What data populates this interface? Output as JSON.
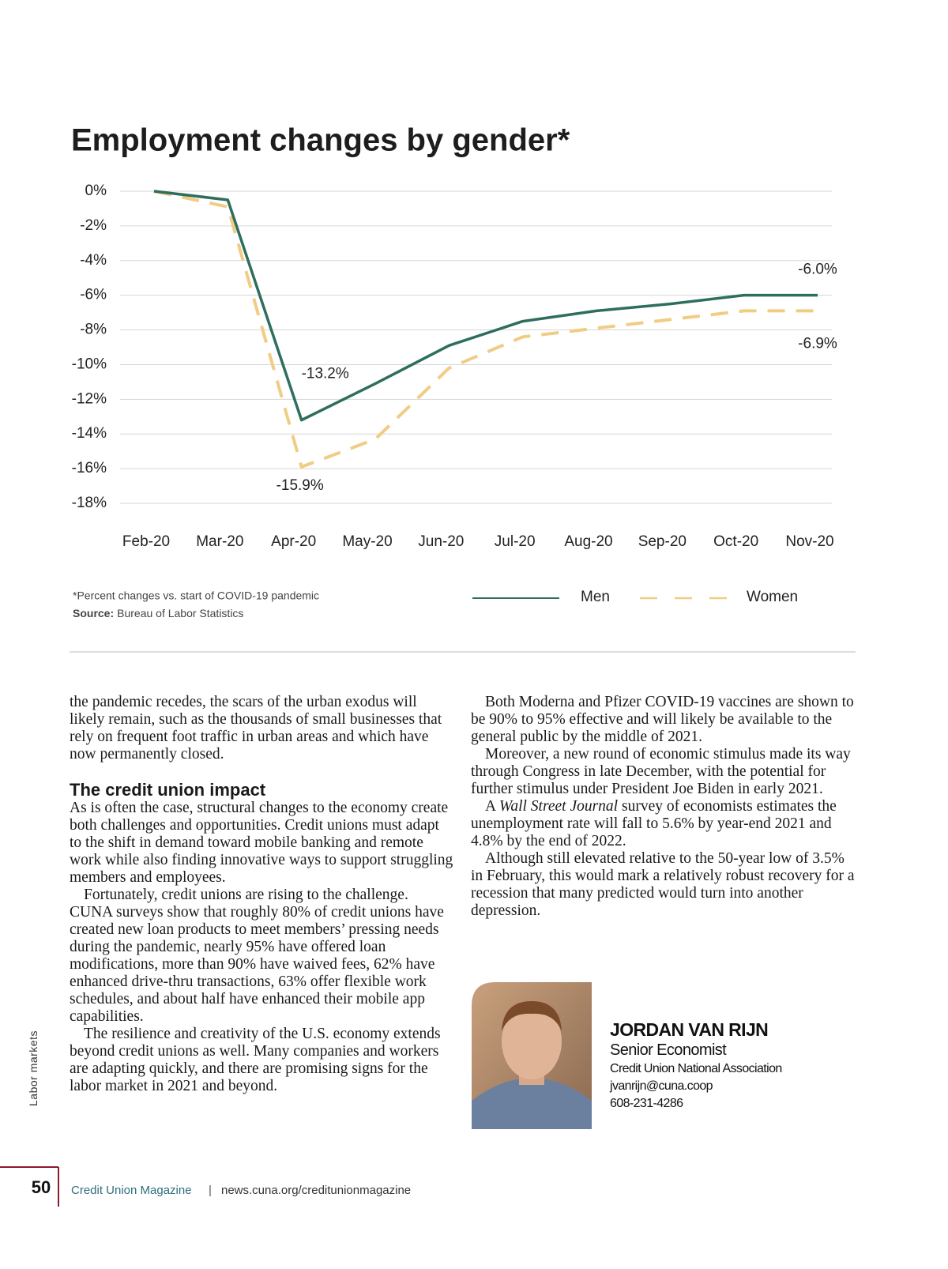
{
  "chart_data": {
    "type": "line",
    "title": "Employment changes by gender*",
    "categories": [
      "Feb-20",
      "Mar-20",
      "Apr-20",
      "May-20",
      "Jun-20",
      "Jul-20",
      "Aug-20",
      "Sep-20",
      "Oct-20",
      "Nov-20"
    ],
    "series": [
      {
        "name": "Men",
        "color": "#2e6e5e",
        "dashed": false,
        "values": [
          0,
          -0.5,
          -13.2,
          -11.1,
          -8.9,
          -7.5,
          -6.9,
          -6.5,
          -6.0,
          -6.0
        ],
        "value_labels": [
          null,
          null,
          "-13.2%",
          null,
          null,
          null,
          null,
          null,
          null,
          "-6.0%"
        ]
      },
      {
        "name": "Women",
        "color": "#f0cc85",
        "dashed": true,
        "values": [
          0,
          -0.9,
          -15.9,
          -14.3,
          -10.2,
          -8.4,
          -7.9,
          -7.4,
          -6.9,
          -6.9
        ],
        "value_labels": [
          null,
          null,
          "-15.9%",
          null,
          null,
          null,
          null,
          null,
          null,
          "-6.9%"
        ]
      }
    ],
    "ylim": [
      -18,
      0
    ],
    "yticks": [
      {
        "value": 0,
        "label": "0%"
      },
      {
        "value": -2,
        "label": "-2%"
      },
      {
        "value": -4,
        "label": "-4%"
      },
      {
        "value": -6,
        "label": "-6%"
      },
      {
        "value": -8,
        "label": "-8%"
      },
      {
        "value": -10,
        "label": "-10%"
      },
      {
        "value": -12,
        "label": "-12%"
      },
      {
        "value": -14,
        "label": "-14%"
      },
      {
        "value": -16,
        "label": "-16%"
      },
      {
        "value": -18,
        "label": "-18%"
      }
    ],
    "grid": true,
    "legend": "bottom",
    "note": "*Percent changes vs. start of COVID-19 pandemic",
    "source_label": "Source:",
    "source": "Bureau of Labor Statistics"
  },
  "article": {
    "left": [
      "the pandemic recedes, the scars of the urban exodus will likely remain, such as the thousands of small businesses that rely on frequent foot traffic in urban areas and which have now permanently closed."
    ],
    "heading": "The credit union impact",
    "left2": [
      "As is often the case, structural changes to the economy create both challenges and opportunities. Credit unions must adapt to the shift in demand toward mobile banking and remote work while also finding innovative ways to support struggling members and employees.",
      "Fortunately, credit unions are rising to the challenge. CUNA surveys show that roughly 80% of credit unions have created new loan products to meet members’ pressing needs during the pandemic, nearly 95% have offered loan modifications, more than 90% have waived fees, 62% have enhanced drive-thru transactions, 63% offer flexible work schedules, and about half have enhanced their mobile app capabilities.",
      "The resilience and creativity of the U.S. economy extends beyond credit unions as well. Many companies and workers are adapting quickly, and there are promising signs for the labor market in 2021 and beyond."
    ],
    "right": [
      "Both Moderna and Pfizer COVID-19 vaccines are shown to be 90% to 95% effective and will likely be available to the general public by the middle of 2021.",
      "Moreover, a new round of economic stimulus made its way through Congress in late December, with the potential for further stimulus under President Joe Biden in early 2021."
    ],
    "wsj": [
      "A ",
      "Wall Street Journal",
      " survey of economists estimates the unemployment rate will fall to 5.6% by year-end 2021 and 4.8% by the end of 2022."
    ],
    "right2": "Although still elevated relative to the 50-year low of 3.5% in February, this would mark a relatively robust recovery for a recession that many predicted would turn into another depression."
  },
  "author": {
    "name": "JORDAN VAN RIJN",
    "title": "Senior Economist",
    "org": "Credit Union National Association",
    "email": "jvanrijn@cuna.coop",
    "phone": "608-231-4286"
  },
  "sidebar": "Labor markets",
  "footer": {
    "page": "50",
    "magazine": "Credit Union Magazine",
    "sep": "|",
    "url": "news.cuna.org/creditunionmagazine"
  }
}
